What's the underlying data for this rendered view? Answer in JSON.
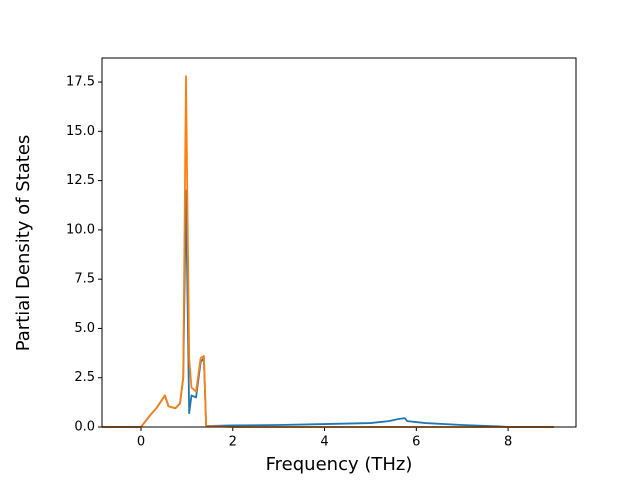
{
  "chart_data": {
    "type": "line",
    "x_label": "Frequency (THz)",
    "y_label": "Partial Density of States",
    "x": [
      -0.85,
      0,
      0.2,
      0.35,
      0.52,
      0.6,
      0.75,
      0.85,
      0.92,
      0.98,
      1.05,
      1.1,
      1.2,
      1.3,
      1.37,
      1.42,
      2,
      3,
      4,
      5,
      5.4,
      5.6,
      5.75,
      5.8,
      6.2,
      7,
      7.8,
      8,
      9
    ],
    "series": [
      {
        "color": "#1f77b4",
        "values": [
          0,
          0,
          0.6,
          1.0,
          1.6,
          1.05,
          0.95,
          1.2,
          2.5,
          12,
          0.7,
          1.6,
          1.5,
          3.3,
          3.5,
          0.05,
          0.08,
          0.1,
          0.15,
          0.2,
          0.3,
          0.4,
          0.45,
          0.3,
          0.2,
          0.1,
          0.03,
          0,
          0
        ]
      },
      {
        "color": "#ff7f0e",
        "values": [
          0,
          0,
          0.6,
          1.0,
          1.6,
          1.05,
          0.95,
          1.2,
          2.5,
          17.8,
          3.5,
          2.0,
          1.8,
          3.5,
          3.6,
          0.05,
          0,
          0,
          0,
          0,
          0,
          0,
          0,
          0,
          0,
          0,
          0,
          0,
          0
        ]
      }
    ],
    "xlim": [
      -0.85,
      9.48
    ],
    "ylim": [
      0,
      18.72
    ],
    "xticks": [
      0,
      2,
      4,
      6,
      8
    ],
    "yticks": [
      {
        "value": 0,
        "label": "0.0"
      },
      2.5,
      {
        "value": 5,
        "label": "5.0"
      },
      7.5,
      {
        "value": 10,
        "label": "10.0"
      },
      12.5,
      {
        "value": 15,
        "label": "15.0"
      },
      17.5
    ]
  }
}
